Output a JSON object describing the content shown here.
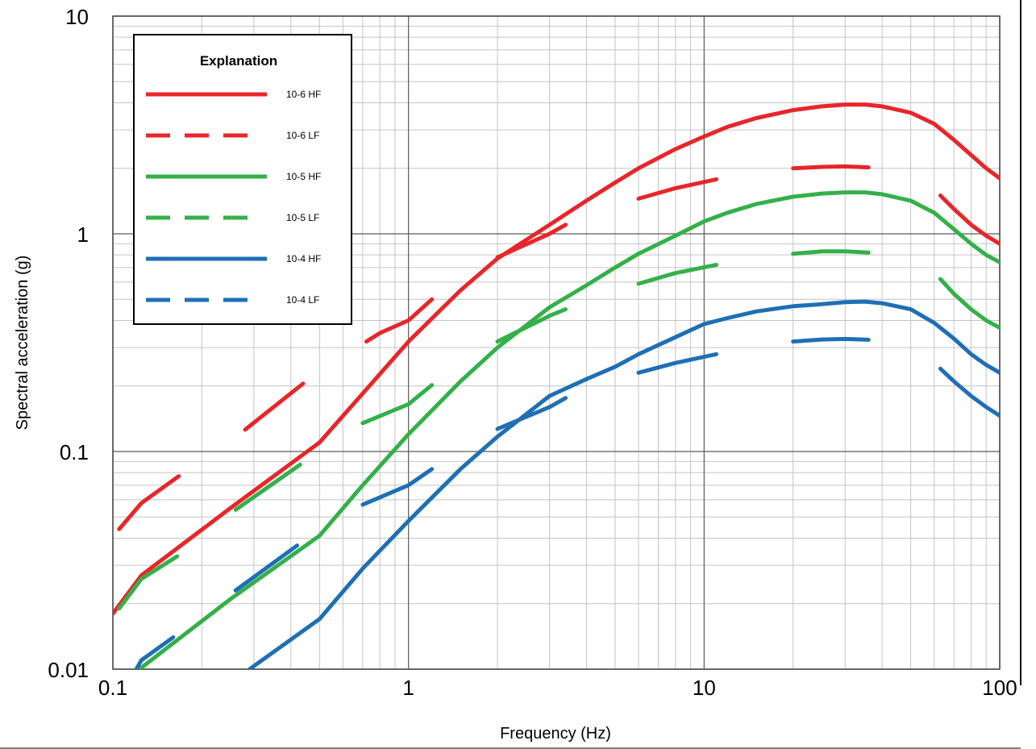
{
  "chart_data": {
    "type": "line",
    "title": "",
    "xlabel": "Frequency (Hz)",
    "ylabel": "Spectral acceleration (g)",
    "x_scale": "log",
    "y_scale": "log",
    "xlim": [
      0.1,
      100
    ],
    "ylim": [
      0.01,
      10
    ],
    "x_ticks": [
      "0.1",
      "1",
      "10",
      "100"
    ],
    "y_ticks": [
      "0.01",
      "0.1",
      "1",
      "10"
    ],
    "grid": true,
    "legend": {
      "title": "Explanation",
      "position": "top-left"
    },
    "colors": {
      "red": "#e8262a",
      "green": "#34b04a",
      "blue": "#1f6fb5"
    },
    "series": [
      {
        "name": "10-6 HF",
        "color": "#e8262a",
        "dash": "solid",
        "segments": [
          [
            [
              0.1,
              0.018
            ],
            [
              0.125,
              0.027
            ],
            [
              0.25,
              0.055
            ],
            [
              0.5,
              0.11
            ],
            [
              1,
              0.32
            ],
            [
              1.5,
              0.55
            ],
            [
              2,
              0.77
            ],
            [
              3,
              1.1
            ],
            [
              4,
              1.42
            ],
            [
              5,
              1.72
            ],
            [
              6,
              2.0
            ],
            [
              8,
              2.45
            ],
            [
              10,
              2.8
            ],
            [
              12,
              3.1
            ],
            [
              15,
              3.4
            ],
            [
              20,
              3.7
            ],
            [
              25,
              3.85
            ],
            [
              30,
              3.92
            ],
            [
              35,
              3.92
            ],
            [
              40,
              3.85
            ],
            [
              50,
              3.6
            ],
            [
              60,
              3.2
            ],
            [
              70,
              2.7
            ],
            [
              80,
              2.3
            ],
            [
              90,
              2.0
            ],
            [
              100,
              1.8
            ]
          ]
        ]
      },
      {
        "name": "10-6 LF",
        "color": "#e8262a",
        "dash": "dashed",
        "segments": [
          [
            [
              0.105,
              0.044
            ],
            [
              0.125,
              0.058
            ],
            [
              0.167,
              0.077
            ]
          ],
          [
            [
              0.28,
              0.126
            ],
            [
              0.44,
              0.205
            ]
          ],
          [
            [
              0.72,
              0.32
            ],
            [
              0.8,
              0.35
            ],
            [
              1,
              0.4
            ],
            [
              1.2,
              0.5
            ]
          ],
          [
            [
              2,
              0.78
            ],
            [
              3,
              1.0
            ],
            [
              3.4,
              1.1
            ]
          ],
          [
            [
              6,
              1.45
            ],
            [
              8,
              1.62
            ],
            [
              11,
              1.78
            ]
          ],
          [
            [
              20,
              2.0
            ],
            [
              25,
              2.03
            ],
            [
              30,
              2.04
            ],
            [
              36,
              2.02
            ]
          ],
          [
            [
              63,
              1.5
            ],
            [
              70,
              1.3
            ],
            [
              80,
              1.1
            ],
            [
              90,
              0.98
            ],
            [
              100,
              0.9
            ]
          ]
        ]
      },
      {
        "name": "10-5 HF",
        "color": "#34b04a",
        "dash": "solid",
        "segments": [
          [
            [
              0.123,
              0.01
            ],
            [
              0.25,
              0.021
            ],
            [
              0.5,
              0.041
            ],
            [
              0.7,
              0.07
            ],
            [
              1,
              0.12
            ],
            [
              1.5,
              0.21
            ],
            [
              2,
              0.3
            ],
            [
              3,
              0.46
            ],
            [
              4,
              0.58
            ],
            [
              5,
              0.7
            ],
            [
              6,
              0.81
            ],
            [
              8,
              0.98
            ],
            [
              10,
              1.14
            ],
            [
              12,
              1.25
            ],
            [
              15,
              1.37
            ],
            [
              20,
              1.48
            ],
            [
              25,
              1.53
            ],
            [
              30,
              1.55
            ],
            [
              35,
              1.55
            ],
            [
              40,
              1.52
            ],
            [
              50,
              1.42
            ],
            [
              60,
              1.25
            ],
            [
              70,
              1.05
            ],
            [
              80,
              0.9
            ],
            [
              90,
              0.8
            ],
            [
              100,
              0.74
            ]
          ]
        ]
      },
      {
        "name": "10-5 LF",
        "color": "#34b04a",
        "dash": "dashed",
        "segments": [
          [
            [
              0.105,
              0.019
            ],
            [
              0.125,
              0.026
            ],
            [
              0.165,
              0.033
            ]
          ],
          [
            [
              0.26,
              0.054
            ],
            [
              0.43,
              0.087
            ]
          ],
          [
            [
              0.7,
              0.135
            ],
            [
              1,
              0.165
            ],
            [
              1.2,
              0.202
            ]
          ],
          [
            [
              2,
              0.32
            ],
            [
              3,
              0.42
            ],
            [
              3.4,
              0.45
            ]
          ],
          [
            [
              6,
              0.59
            ],
            [
              8,
              0.66
            ],
            [
              11,
              0.72
            ]
          ],
          [
            [
              20,
              0.81
            ],
            [
              25,
              0.83
            ],
            [
              30,
              0.83
            ],
            [
              36,
              0.82
            ]
          ],
          [
            [
              63,
              0.62
            ],
            [
              70,
              0.53
            ],
            [
              80,
              0.45
            ],
            [
              90,
              0.4
            ],
            [
              100,
              0.37
            ]
          ]
        ]
      },
      {
        "name": "10-4 HF",
        "color": "#1f6fb5",
        "dash": "solid",
        "segments": [
          [
            [
              0.29,
              0.01
            ],
            [
              0.5,
              0.017
            ],
            [
              0.7,
              0.029
            ],
            [
              1,
              0.048
            ],
            [
              1.5,
              0.083
            ],
            [
              2,
              0.117
            ],
            [
              3,
              0.18
            ],
            [
              4,
              0.215
            ],
            [
              5,
              0.245
            ],
            [
              6,
              0.28
            ],
            [
              8,
              0.335
            ],
            [
              10,
              0.385
            ],
            [
              12,
              0.41
            ],
            [
              15,
              0.44
            ],
            [
              20,
              0.465
            ],
            [
              25,
              0.475
            ],
            [
              30,
              0.485
            ],
            [
              35,
              0.488
            ],
            [
              40,
              0.48
            ],
            [
              50,
              0.45
            ],
            [
              60,
              0.39
            ],
            [
              70,
              0.33
            ],
            [
              80,
              0.28
            ],
            [
              90,
              0.25
            ],
            [
              100,
              0.23
            ]
          ]
        ]
      },
      {
        "name": "10-4 LF",
        "color": "#1f6fb5",
        "dash": "dashed",
        "segments": [
          [
            [
              0.12,
              0.01
            ],
            [
              0.125,
              0.011
            ],
            [
              0.16,
              0.014
            ]
          ],
          [
            [
              0.26,
              0.023
            ],
            [
              0.42,
              0.037
            ]
          ],
          [
            [
              0.7,
              0.057
            ],
            [
              1,
              0.07
            ],
            [
              1.2,
              0.083
            ]
          ],
          [
            [
              2,
              0.127
            ],
            [
              3,
              0.16
            ],
            [
              3.4,
              0.176
            ]
          ],
          [
            [
              6,
              0.23
            ],
            [
              8,
              0.255
            ],
            [
              11,
              0.28
            ]
          ],
          [
            [
              20,
              0.32
            ],
            [
              25,
              0.327
            ],
            [
              30,
              0.329
            ],
            [
              36,
              0.326
            ]
          ],
          [
            [
              63,
              0.24
            ],
            [
              70,
              0.21
            ],
            [
              80,
              0.18
            ],
            [
              90,
              0.16
            ],
            [
              100,
              0.146
            ]
          ]
        ]
      }
    ]
  }
}
